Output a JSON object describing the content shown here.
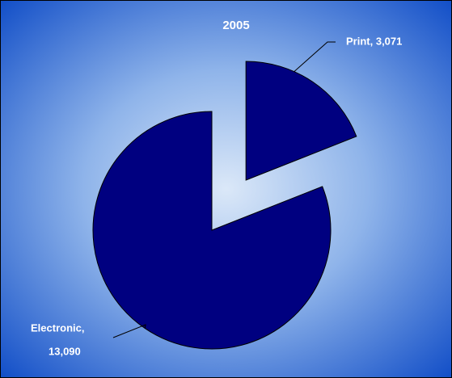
{
  "chart_data": {
    "type": "pie",
    "title": "2005",
    "values": [
      3071,
      13090
    ],
    "value_labels": [
      [
        "Print, 3,071"
      ],
      [
        "Electronic,",
        "13,090"
      ]
    ],
    "color": "#000080",
    "explode": [
      true,
      false
    ]
  }
}
